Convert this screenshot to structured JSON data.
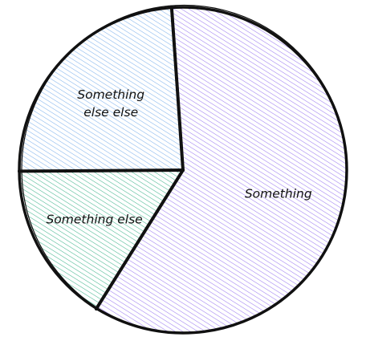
{
  "chart_data": {
    "type": "pie",
    "title": "",
    "labels": [
      "Something",
      "Something else",
      "Something else else"
    ],
    "values": [
      60,
      16,
      24
    ],
    "colors": [
      "#9b7bf0",
      "#43b58f",
      "#7fb2ec"
    ],
    "start_angle_deg": -4,
    "direction": "clockwise",
    "legend": "none",
    "style": "hand-drawn hatched"
  }
}
